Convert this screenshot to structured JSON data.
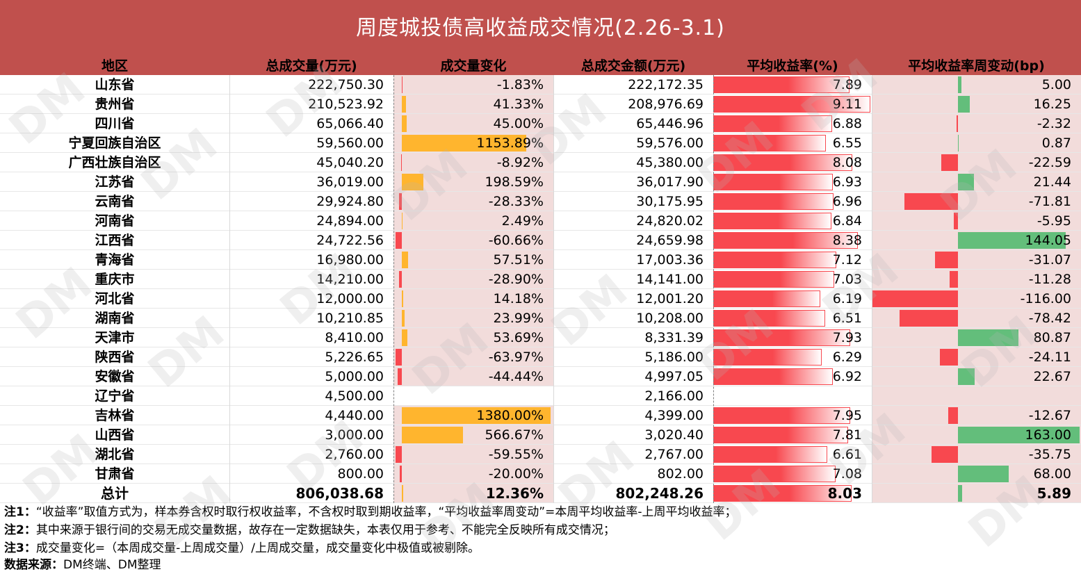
{
  "title": "周度城投债高收益成交情况(2.26-3.1)",
  "headers": {
    "region": "地区",
    "volume": "总成交量(万元)",
    "volume_change": "成交量变化",
    "amount": "总成交金额(万元)",
    "avg_yield": "平均收益率(%)",
    "yield_change": "平均收益率周变动(bp)"
  },
  "colors": {
    "header_bg": "#c0504d",
    "orange_bar": "#ffb52e",
    "red_bar": "#f8484f",
    "green_bar": "#63be7b",
    "pink_fill": "#f2dcdb"
  },
  "rows": [
    {
      "region": "山东省",
      "volume": "222,750.30",
      "volume_change": "-1.83%",
      "amount": "222,172.35",
      "avg_yield": "7.89",
      "yield_change": "5.00",
      "vc": -1.83,
      "ay": 7.89,
      "yc": 5.0
    },
    {
      "region": "贵州省",
      "volume": "210,523.92",
      "volume_change": "41.33%",
      "amount": "208,976.69",
      "avg_yield": "9.11",
      "yield_change": "16.25",
      "vc": 41.33,
      "ay": 9.11,
      "yc": 16.25
    },
    {
      "region": "四川省",
      "volume": "65,066.40",
      "volume_change": "45.00%",
      "amount": "65,446.96",
      "avg_yield": "6.88",
      "yield_change": "-2.32",
      "vc": 45.0,
      "ay": 6.88,
      "yc": -2.32
    },
    {
      "region": "宁夏回族自治区",
      "volume": "59,560.00",
      "volume_change": "1153.89%",
      "amount": "59,576.00",
      "avg_yield": "6.55",
      "yield_change": "0.87",
      "vc": 1153.89,
      "ay": 6.55,
      "yc": 0.87
    },
    {
      "region": "广西壮族自治区",
      "volume": "45,040.20",
      "volume_change": "-8.92%",
      "amount": "45,380.00",
      "avg_yield": "8.08",
      "yield_change": "-22.59",
      "vc": -8.92,
      "ay": 8.08,
      "yc": -22.59
    },
    {
      "region": "江苏省",
      "volume": "36,019.00",
      "volume_change": "198.59%",
      "amount": "36,017.90",
      "avg_yield": "6.93",
      "yield_change": "21.44",
      "vc": 198.59,
      "ay": 6.93,
      "yc": 21.44
    },
    {
      "region": "云南省",
      "volume": "29,924.80",
      "volume_change": "-28.33%",
      "amount": "30,175.95",
      "avg_yield": "6.96",
      "yield_change": "-71.81",
      "vc": -28.33,
      "ay": 6.96,
      "yc": -71.81
    },
    {
      "region": "河南省",
      "volume": "24,894.00",
      "volume_change": "2.49%",
      "amount": "24,820.02",
      "avg_yield": "6.84",
      "yield_change": "-5.95",
      "vc": 2.49,
      "ay": 6.84,
      "yc": -5.95
    },
    {
      "region": "江西省",
      "volume": "24,722.56",
      "volume_change": "-60.66%",
      "amount": "24,659.98",
      "avg_yield": "8.38",
      "yield_change": "144.05",
      "vc": -60.66,
      "ay": 8.38,
      "yc": 144.05
    },
    {
      "region": "青海省",
      "volume": "16,980.00",
      "volume_change": "57.51%",
      "amount": "17,003.36",
      "avg_yield": "7.12",
      "yield_change": "-31.07",
      "vc": 57.51,
      "ay": 7.12,
      "yc": -31.07
    },
    {
      "region": "重庆市",
      "volume": "14,210.00",
      "volume_change": "-28.90%",
      "amount": "14,141.00",
      "avg_yield": "7.03",
      "yield_change": "-11.28",
      "vc": -28.9,
      "ay": 7.03,
      "yc": -11.28
    },
    {
      "region": "河北省",
      "volume": "12,000.00",
      "volume_change": "14.18%",
      "amount": "12,001.20",
      "avg_yield": "6.19",
      "yield_change": "-116.00",
      "vc": 14.18,
      "ay": 6.19,
      "yc": -116.0
    },
    {
      "region": "湖南省",
      "volume": "10,210.85",
      "volume_change": "23.99%",
      "amount": "10,208.00",
      "avg_yield": "6.51",
      "yield_change": "-78.42",
      "vc": 23.99,
      "ay": 6.51,
      "yc": -78.42
    },
    {
      "region": "天津市",
      "volume": "8,410.00",
      "volume_change": "53.69%",
      "amount": "8,331.39",
      "avg_yield": "7.93",
      "yield_change": "80.87",
      "vc": 53.69,
      "ay": 7.93,
      "yc": 80.87
    },
    {
      "region": "陕西省",
      "volume": "5,226.65",
      "volume_change": "-63.97%",
      "amount": "5,186.00",
      "avg_yield": "6.29",
      "yield_change": "-24.11",
      "vc": -63.97,
      "ay": 6.29,
      "yc": -24.11
    },
    {
      "region": "安徽省",
      "volume": "5,000.00",
      "volume_change": "-44.44%",
      "amount": "4,997.05",
      "avg_yield": "6.92",
      "yield_change": "22.67",
      "vc": -44.44,
      "ay": 6.92,
      "yc": 22.67
    },
    {
      "region": "辽宁省",
      "volume": "4,500.00",
      "volume_change": "",
      "amount": "2,166.00",
      "avg_yield": "",
      "yield_change": "",
      "vc": null,
      "ay": null,
      "yc": null
    },
    {
      "region": "吉林省",
      "volume": "4,440.00",
      "volume_change": "1380.00%",
      "amount": "4,399.00",
      "avg_yield": "7.95",
      "yield_change": "-12.67",
      "vc": 1380.0,
      "ay": 7.95,
      "yc": -12.67
    },
    {
      "region": "山西省",
      "volume": "3,000.00",
      "volume_change": "566.67%",
      "amount": "3,020.40",
      "avg_yield": "7.81",
      "yield_change": "163.00",
      "vc": 566.67,
      "ay": 7.81,
      "yc": 163.0
    },
    {
      "region": "湖北省",
      "volume": "2,760.00",
      "volume_change": "-59.55%",
      "amount": "2,767.00",
      "avg_yield": "6.61",
      "yield_change": "-35.75",
      "vc": -59.55,
      "ay": 6.61,
      "yc": -35.75
    },
    {
      "region": "甘肃省",
      "volume": "800.00",
      "volume_change": "-20.00%",
      "amount": "802.00",
      "avg_yield": "7.08",
      "yield_change": "68.00",
      "vc": -20.0,
      "ay": 7.08,
      "yc": 68.0
    }
  ],
  "total": {
    "region": "总计",
    "volume": "806,038.68",
    "volume_change": "12.36%",
    "amount": "802,248.26",
    "avg_yield": "8.03",
    "yield_change": "5.89",
    "vc": 12.36,
    "ay": 8.03,
    "yc": 5.89
  },
  "notes": [
    {
      "label": "注1：",
      "text": "“收益率”取值方式为，样本券含权时取行权收益率，不含权时取到期收益率，“平均收益率周变动”=本周平均收益率-上周平均收益率；"
    },
    {
      "label": "注2：",
      "text": "其中来源于银行间的交易无成交量数据，故存在一定数据缺失，本表仅用于参考、不能完全反映所有成交情况；"
    },
    {
      "label": "注3：",
      "text": "成交量变化=（本周成交量-上周成交量）/上周成交量，成交量变化中极值或被剔除。"
    },
    {
      "label": "数据来源：",
      "text": "DM终端、DM整理"
    }
  ],
  "watermark": "DM"
}
